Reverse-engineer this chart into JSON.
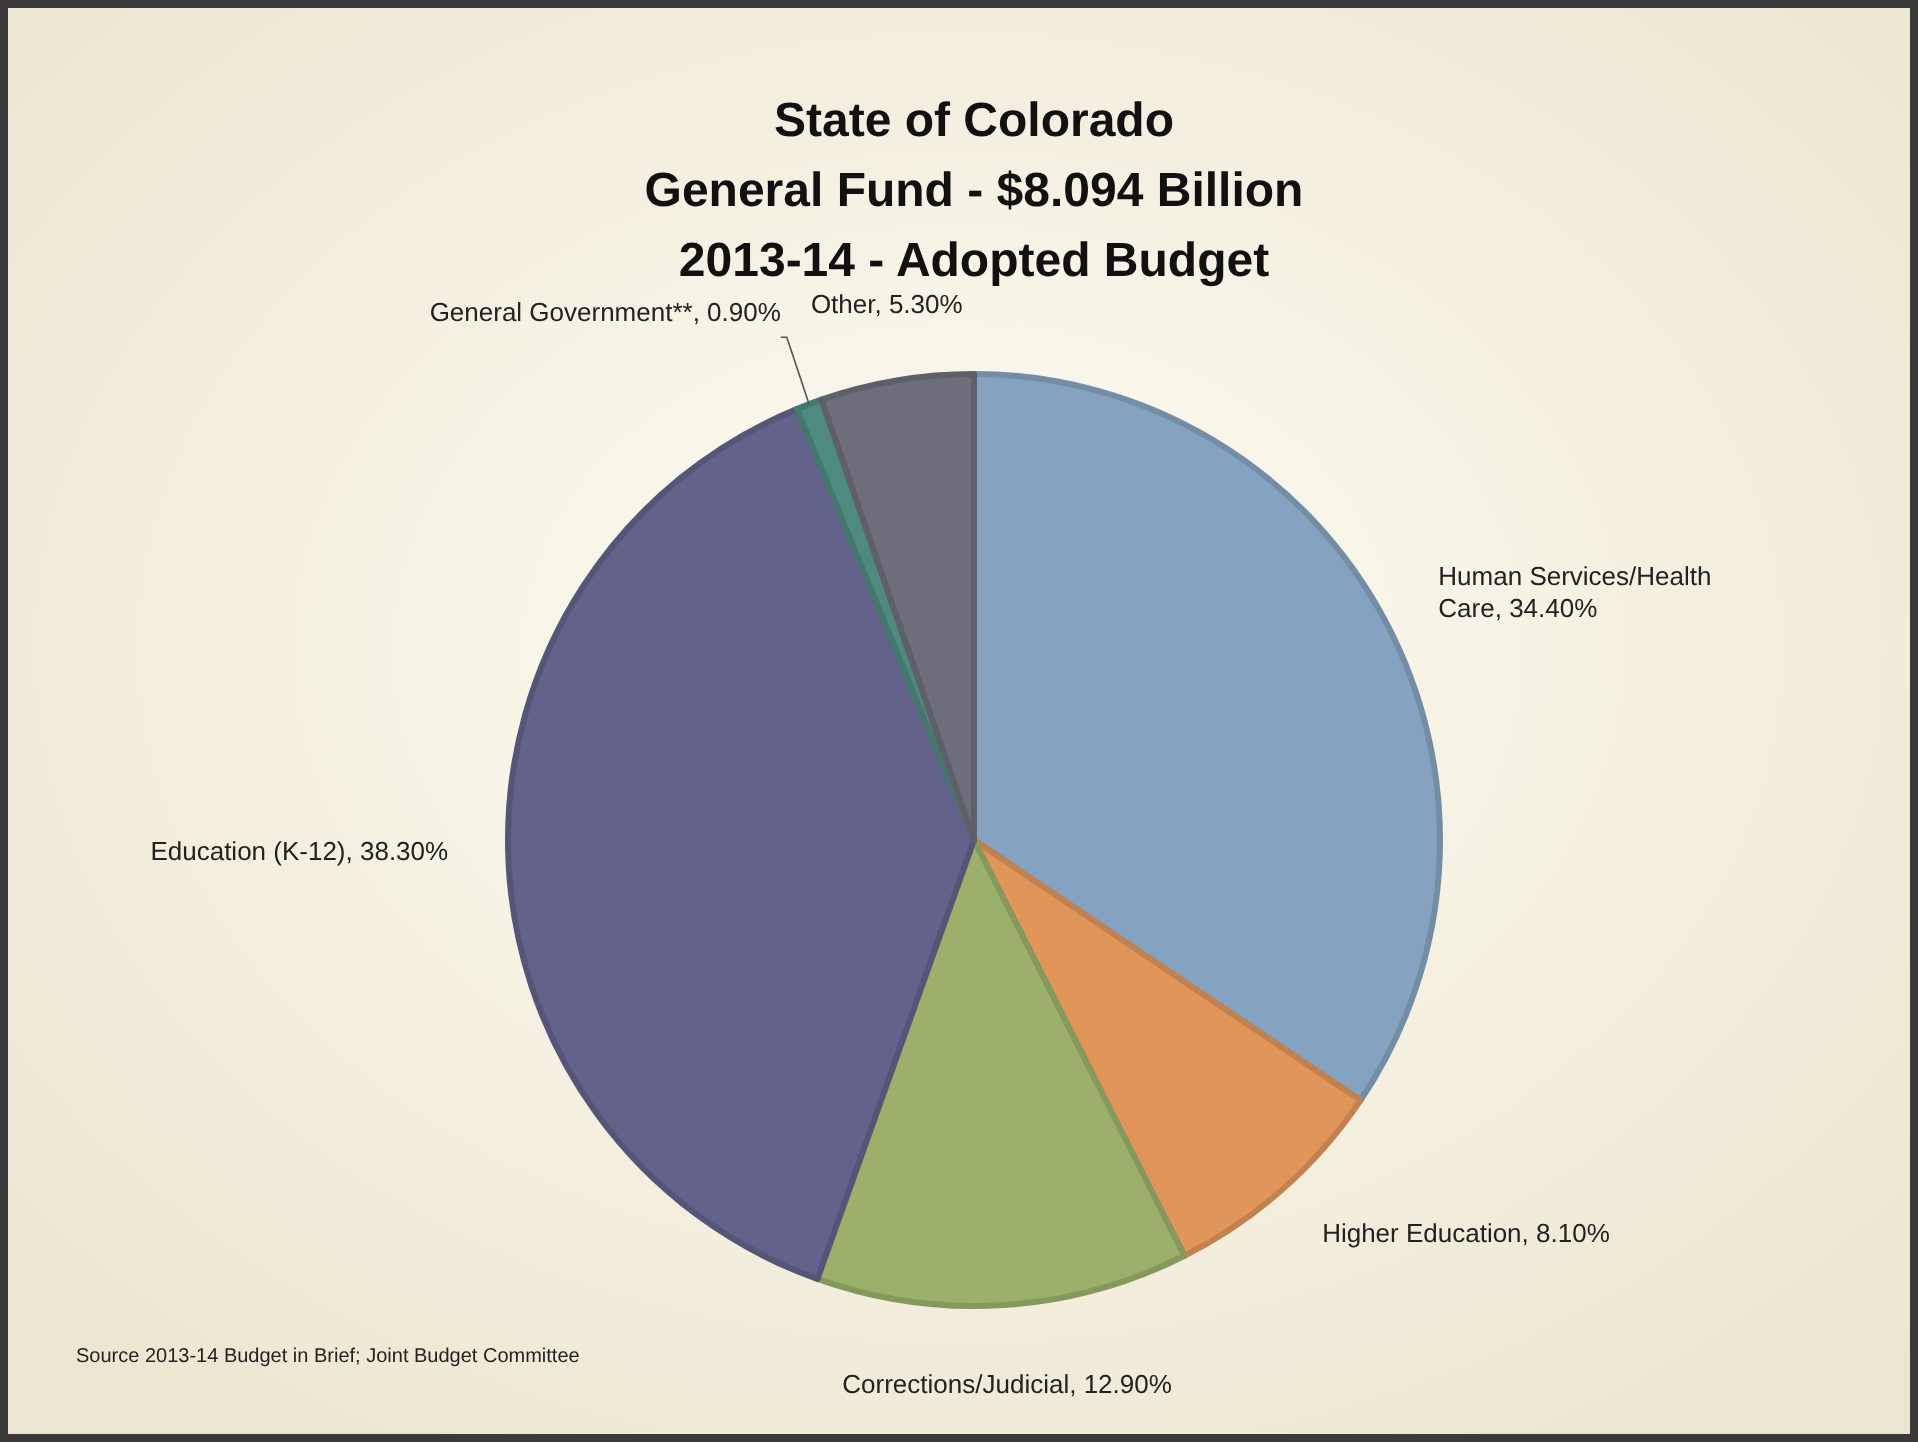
{
  "chart_data": {
    "type": "pie",
    "title": "State of Colorado\nGeneral Fund - $8.094 Billion\n2013-14 - Adopted Budget",
    "categories": [
      "Human Services/Health Care",
      "Higher Education",
      "Corrections/Judicial",
      "Education (K-12)",
      "General Government**",
      "Other"
    ],
    "values": [
      34.4,
      8.1,
      12.9,
      38.3,
      0.9,
      5.3
    ],
    "value_labels": [
      "34.40%",
      "8.10%",
      "12.90%",
      "38.30%",
      "0.90%",
      "5.30%"
    ],
    "colors": [
      "#85a3c0",
      "#e0955a",
      "#9bb06a",
      "#62628a",
      "#4f8a80",
      "#6e6e7a"
    ],
    "annotations": [
      "Source 2013-14 Budget in Brief; Joint Budget Committee"
    ]
  }
}
